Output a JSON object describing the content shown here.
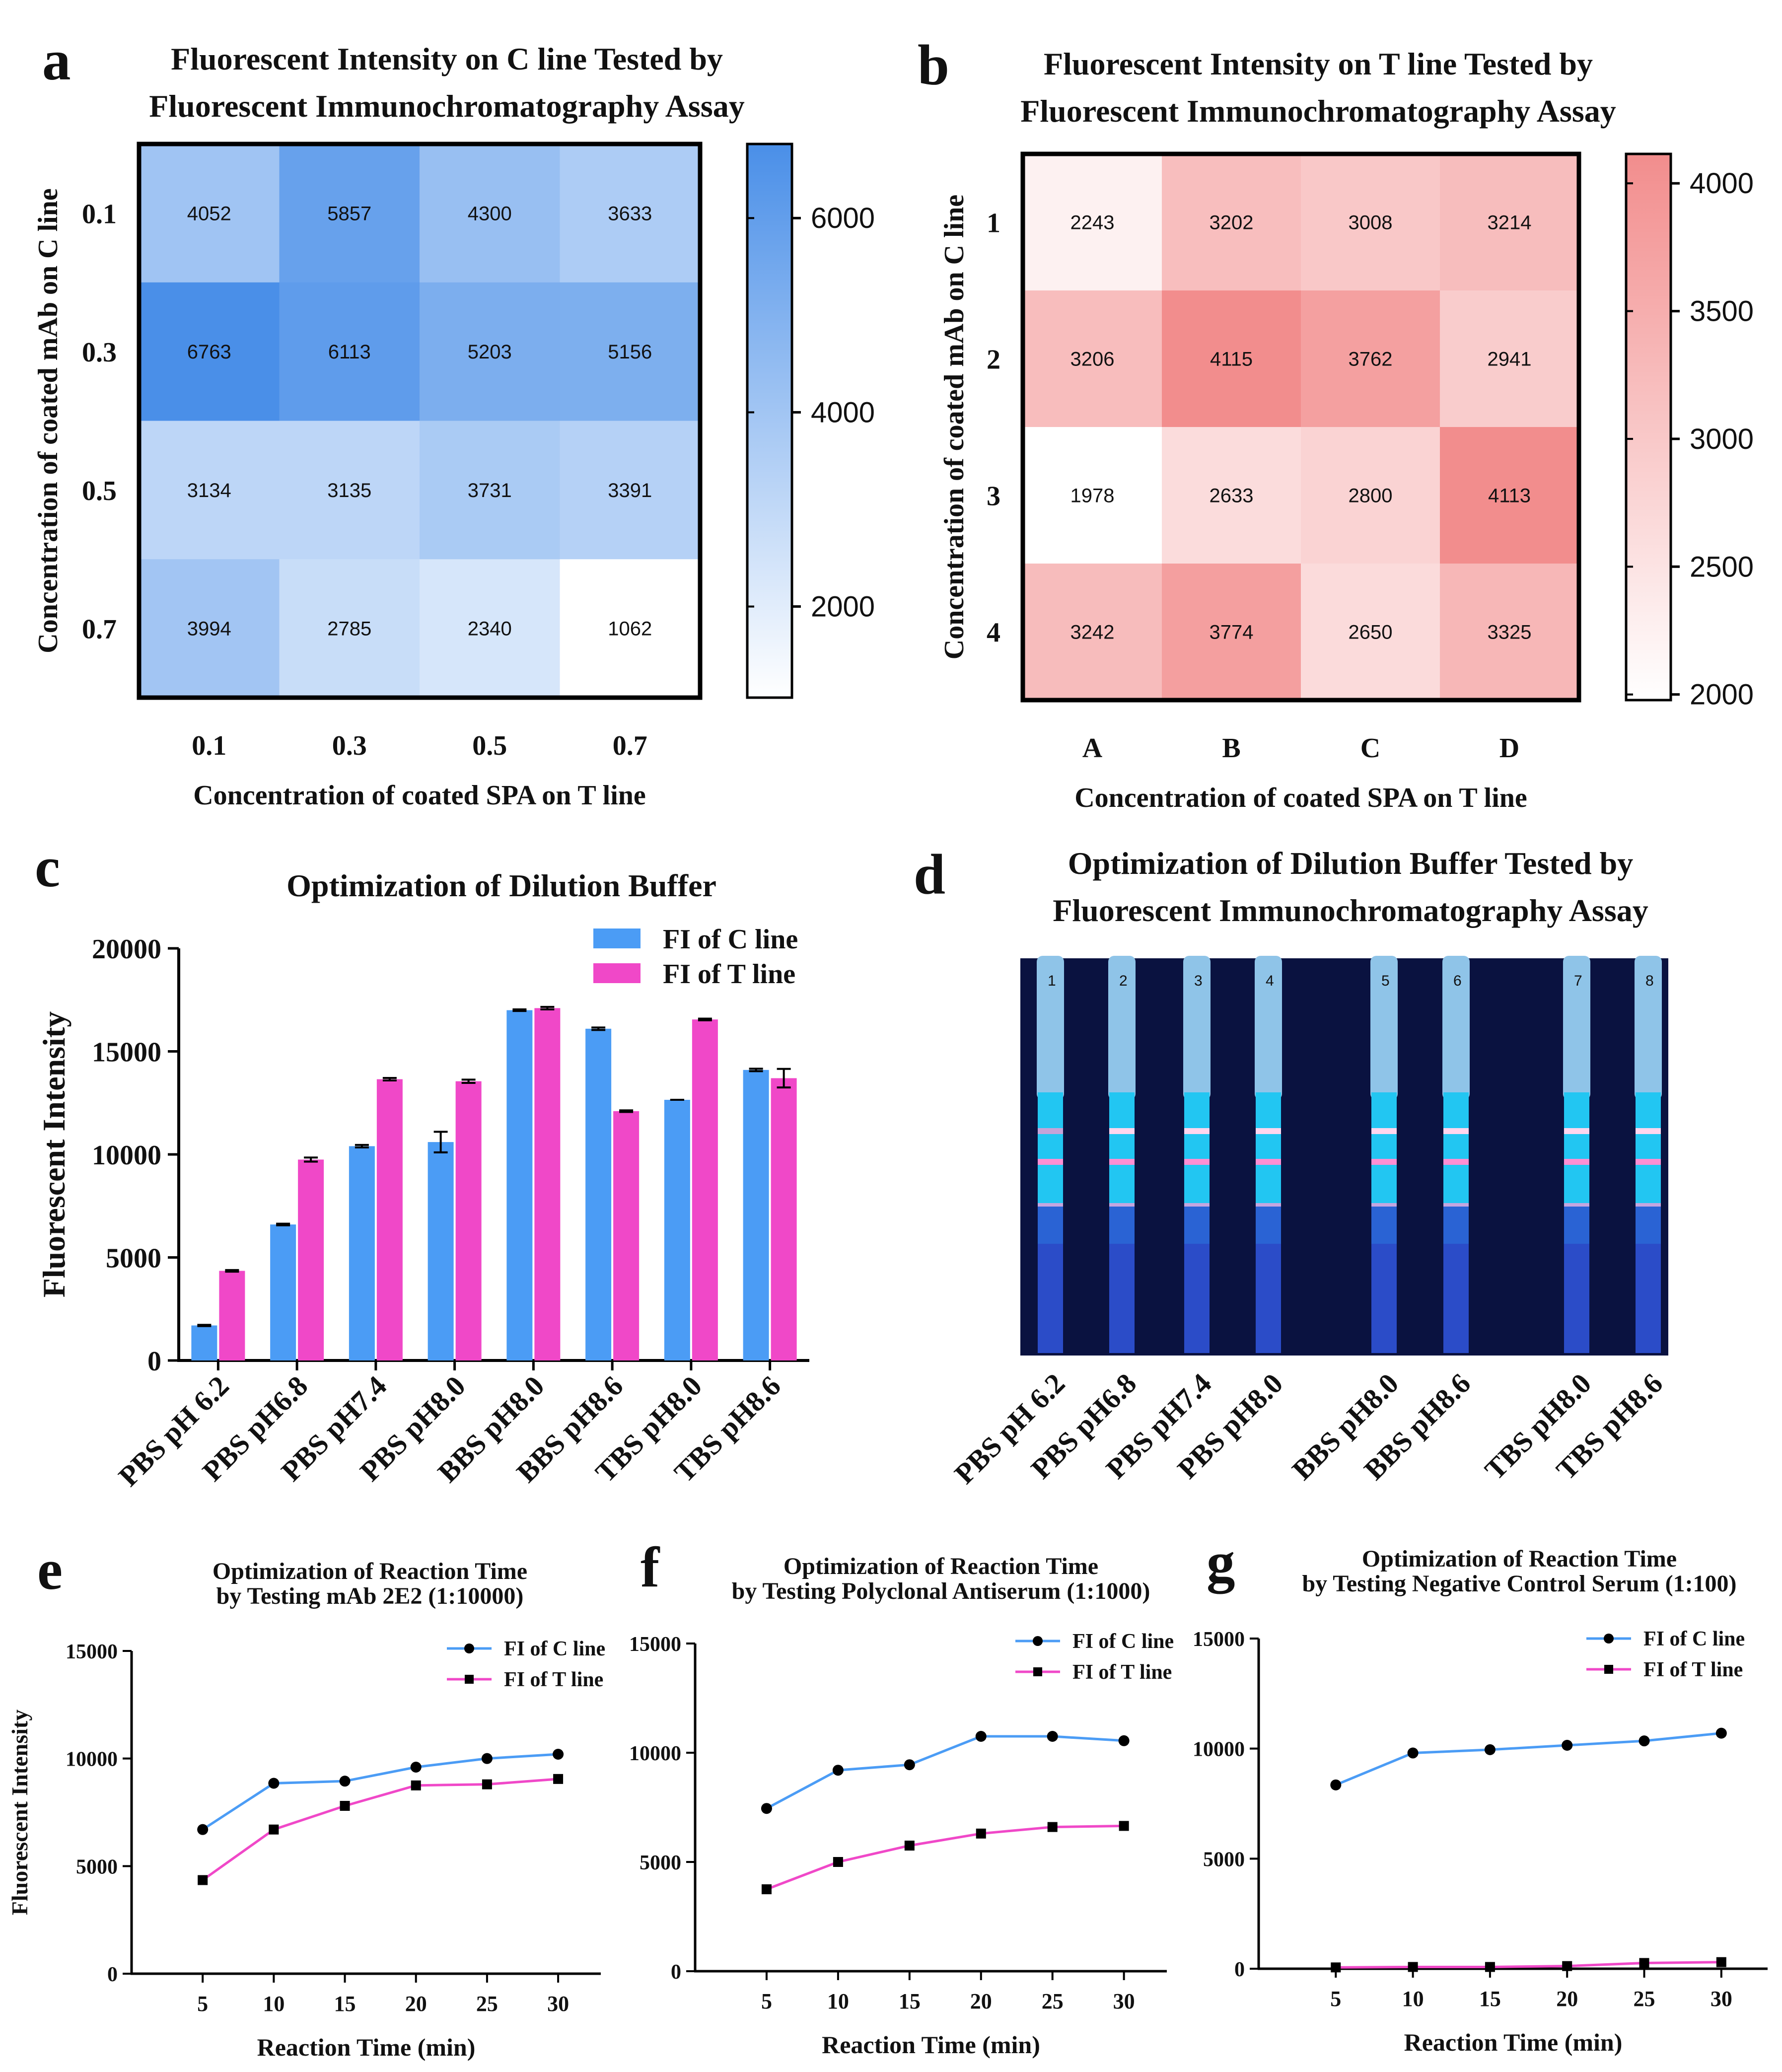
{
  "figure": {
    "panel_letters": [
      "a",
      "b",
      "c",
      "d",
      "e",
      "f",
      "g"
    ]
  },
  "colors": {
    "c_line": "#4b9cf5",
    "t_line": "#f048c8",
    "heat_blue": "#4a8fe8",
    "heat_red": "#f28d8d",
    "strip_bg": "#0a1240"
  },
  "chart_data": [
    {
      "id": "a",
      "type": "heatmap",
      "title": "Fluorescent Intensity on C line Tested by Fluorescent Immunochromatography Assay",
      "title_lines": [
        "Fluorescent Intensity on C line Tested by",
        "Fluorescent Immunochromatography Assay"
      ],
      "xlabel": "Concentration of coated SPA on T line",
      "ylabel": "Concentration of coated mAb on C line",
      "x_categories": [
        "0.1",
        "0.3",
        "0.5",
        "0.7"
      ],
      "y_categories": [
        "0.1",
        "0.3",
        "0.5",
        "0.7"
      ],
      "values": [
        [
          4052,
          5857,
          4300,
          3633
        ],
        [
          6763,
          6113,
          5203,
          5156
        ],
        [
          3134,
          3135,
          3731,
          3391
        ],
        [
          3994,
          2785,
          2340,
          1062
        ]
      ],
      "colorbar": {
        "min": 1062,
        "max": 6763,
        "ticks": [
          "2000",
          "4000",
          "6000"
        ],
        "tick_values": [
          2000,
          4000,
          6000
        ]
      }
    },
    {
      "id": "b",
      "type": "heatmap",
      "title": "Fluorescent Intensity on T line Tested by Fluorescent Immunochromatography Assay",
      "title_lines": [
        "Fluorescent Intensity on T line Tested by",
        "Fluorescent Immunochromatography Assay"
      ],
      "xlabel": "Concentration of coated SPA on T line",
      "ylabel": "Concentration of coated mAb on C line",
      "x_categories": [
        "A",
        "B",
        "C",
        "D"
      ],
      "y_categories": [
        "1",
        "2",
        "3",
        "4"
      ],
      "values": [
        [
          2243,
          3202,
          3008,
          3214
        ],
        [
          3206,
          4115,
          3762,
          2941
        ],
        [
          1978,
          2633,
          2800,
          4113
        ],
        [
          3242,
          3774,
          2650,
          3325
        ]
      ],
      "colorbar": {
        "min": 1978,
        "max": 4115,
        "ticks": [
          "2000",
          "2500",
          "3000",
          "3500",
          "4000"
        ],
        "tick_values": [
          2000,
          2500,
          3000,
          3500,
          4000
        ]
      }
    },
    {
      "id": "c",
      "type": "bar",
      "title": "Optimization of Dilution Buffer",
      "xlabel": "",
      "ylabel": "Fluorescent Intensity",
      "ylim": [
        0,
        20000
      ],
      "yticks": [
        "0",
        "5000",
        "10000",
        "15000",
        "20000"
      ],
      "ytick_values": [
        0,
        5000,
        10000,
        15000,
        20000
      ],
      "categories": [
        "PBS pH 6.2",
        "PBS pH6.8",
        "PBS pH7.4",
        "PBS pH8.0",
        "BBS pH8.0",
        "BBS pH8.6",
        "TBS pH8.0",
        "TBS pH8.6"
      ],
      "series": [
        {
          "name": "FI of C line",
          "values": [
            1700,
            6600,
            10400,
            10600,
            17000,
            16100,
            12650,
            14100
          ],
          "errors": [
            30,
            40,
            60,
            500,
            40,
            60,
            0,
            60
          ]
        },
        {
          "name": "FI of T line",
          "values": [
            4350,
            9750,
            13650,
            13550,
            17100,
            12100,
            16550,
            13700
          ],
          "errors": [
            40,
            100,
            60,
            80,
            60,
            40,
            40,
            450
          ]
        }
      ],
      "legend": "top-right"
    },
    {
      "id": "e",
      "type": "line",
      "title": "Optimization of Reaction Time by Testing mAb 2E2 (1:10000)",
      "title_lines": [
        "Optimization of Reaction Time",
        "by Testing mAb 2E2 (1:10000)"
      ],
      "xlabel": "Reaction Time (min)",
      "ylabel": "Fluorescent Intensity",
      "x": [
        5,
        10,
        15,
        20,
        25,
        30
      ],
      "xticks": [
        "5",
        "10",
        "15",
        "20",
        "25",
        "30"
      ],
      "xlim": [
        0,
        33
      ],
      "ylim": [
        0,
        15000
      ],
      "yticks": [
        "0",
        "5000",
        "10000",
        "15000"
      ],
      "ytick_values": [
        0,
        5000,
        10000,
        15000
      ],
      "series": [
        {
          "name": "FI of C line",
          "values": [
            6700,
            8850,
            8950,
            9600,
            10000,
            10200
          ]
        },
        {
          "name": "FI of T line",
          "values": [
            4350,
            6700,
            7800,
            8750,
            8800,
            9050
          ]
        }
      ],
      "legend": "top-right"
    },
    {
      "id": "f",
      "type": "line",
      "title": "Optimization of Reaction Time by Testing Polyclonal Antiserum (1:1000)",
      "title_lines": [
        "Optimization of Reaction Time",
        "by Testing Polyclonal Antiserum (1:1000)"
      ],
      "xlabel": "Reaction Time (min)",
      "ylabel": "",
      "x": [
        5,
        10,
        15,
        20,
        25,
        30
      ],
      "xticks": [
        "5",
        "10",
        "15",
        "20",
        "25",
        "30"
      ],
      "xlim": [
        0,
        33
      ],
      "ylim": [
        0,
        15000
      ],
      "yticks": [
        "0",
        "5000",
        "10000",
        "15000"
      ],
      "ytick_values": [
        0,
        5000,
        10000,
        15000
      ],
      "series": [
        {
          "name": "FI of C line",
          "values": [
            7450,
            9200,
            9450,
            10750,
            10750,
            10550
          ]
        },
        {
          "name": "FI of T line",
          "values": [
            3750,
            5000,
            5750,
            6300,
            6600,
            6650
          ]
        }
      ],
      "legend": "top-right"
    },
    {
      "id": "g",
      "type": "line",
      "title": "Optimization of Reaction Time by Testing Negative Control Serum (1:100)",
      "title_lines": [
        "Optimization of Reaction Time",
        "by Testing Negative Control Serum (1:100)"
      ],
      "xlabel": "Reaction Time (min)",
      "ylabel": "",
      "x": [
        5,
        10,
        15,
        20,
        25,
        30
      ],
      "xticks": [
        "5",
        "10",
        "15",
        "20",
        "25",
        "30"
      ],
      "xlim": [
        0,
        33
      ],
      "ylim": [
        0,
        15000
      ],
      "yticks": [
        "0",
        "5000",
        "10000",
        "15000"
      ],
      "ytick_values": [
        0,
        5000,
        10000,
        15000
      ],
      "series": [
        {
          "name": "FI of C line",
          "values": [
            8350,
            9800,
            9950,
            10150,
            10350,
            10700
          ]
        },
        {
          "name": "FI of T line",
          "values": [
            60,
            80,
            80,
            120,
            260,
            300
          ]
        }
      ],
      "legend": "top-right"
    }
  ],
  "panel_d": {
    "title_lines": [
      "Optimization of Dilution Buffer Tested by",
      "Fluorescent Immunochromatography Assay"
    ],
    "strip_labels": [
      "PBS pH 6.2",
      "PBS pH6.8",
      "PBS pH7.4",
      "PBS pH8.0",
      "BBS pH8.0",
      "BBS pH8.6",
      "TBS pH8.0",
      "TBS pH8.6"
    ],
    "strip_numbers": [
      "1",
      "2",
      "3",
      "4",
      "5",
      "6",
      "7",
      "8"
    ]
  }
}
